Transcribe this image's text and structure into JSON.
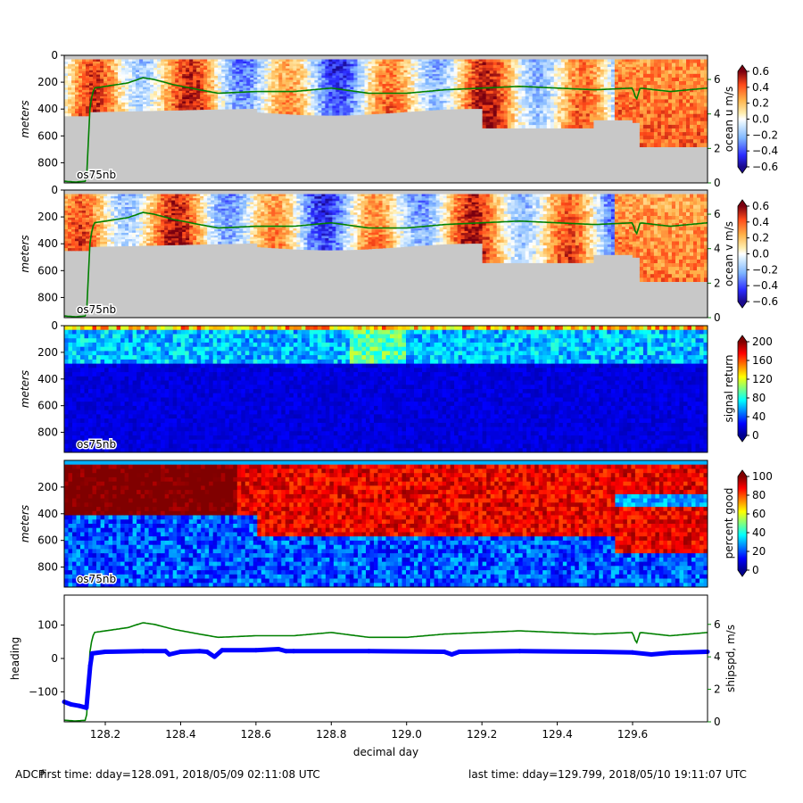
{
  "footer": {
    "label": "ADCP",
    "first_time": "first time: dday=128.091,  2018/05/09 02:11:08 UTC",
    "last_time": "last time: dday=129.799,  2018/05/10 19:11:07 UTC"
  },
  "colors": {
    "background": "#c8c8c8",
    "ship_speed": "#008000",
    "heading": "#0000ff"
  },
  "chart_data": [
    {
      "type": "heatmap",
      "name": "ocean u",
      "tag": "os75nb",
      "ylabel": "meters",
      "colorbar_label": "ocean u m/s",
      "colormap": "diverging",
      "clim": [
        -0.6,
        0.6
      ],
      "colorbar_ticks": [
        "0.6",
        "0.4",
        "0.2",
        "0.0",
        "−0.2",
        "−0.4",
        "−0.6"
      ],
      "ylim": [
        950,
        0
      ],
      "yticks": [
        0,
        200,
        400,
        600,
        800
      ],
      "xlim": [
        128.091,
        129.799
      ],
      "right_axis": {
        "label": "",
        "ylim": [
          0,
          7.4
        ],
        "ticks": [
          0,
          2,
          4,
          6
        ]
      }
    },
    {
      "type": "heatmap",
      "name": "ocean v",
      "tag": "os75nb",
      "ylabel": "meters",
      "colorbar_label": "ocean v m/s",
      "colormap": "diverging",
      "clim": [
        -0.6,
        0.6
      ],
      "colorbar_ticks": [
        "0.6",
        "0.4",
        "0.2",
        "0.0",
        "−0.2",
        "−0.4",
        "−0.6"
      ],
      "ylim": [
        950,
        0
      ],
      "yticks": [
        0,
        200,
        400,
        600,
        800
      ],
      "xlim": [
        128.091,
        129.799
      ],
      "right_axis": {
        "label": "",
        "ylim": [
          0,
          7.4
        ],
        "ticks": [
          0,
          2,
          4,
          6
        ]
      }
    },
    {
      "type": "heatmap",
      "name": "signal return",
      "tag": "os75nb",
      "ylabel": "meters",
      "colorbar_label": "signal return",
      "colormap": "jet",
      "clim": [
        0,
        200
      ],
      "colorbar_ticks": [
        "200",
        "160",
        "120",
        "80",
        "40",
        "0"
      ],
      "ylim": [
        950,
        0
      ],
      "yticks": [
        0,
        200,
        400,
        600,
        800
      ],
      "xlim": [
        128.091,
        129.799
      ]
    },
    {
      "type": "heatmap",
      "name": "percent good",
      "tag": "os75nb",
      "ylabel": "meters",
      "colorbar_label": "percent good",
      "colormap": "jet",
      "clim": [
        0,
        100
      ],
      "colorbar_ticks": [
        "100",
        "80",
        "60",
        "40",
        "20",
        "0"
      ],
      "ylim": [
        950,
        0
      ],
      "yticks": [
        200,
        400,
        600,
        800
      ],
      "xlim": [
        128.091,
        129.799
      ]
    },
    {
      "type": "line",
      "name": "heading and ship speed",
      "xlabel": "decimal day",
      "ylabel": "heading",
      "y2label": "shipspd, m/s",
      "xlim": [
        128.091,
        129.799
      ],
      "xticks": [
        "128.2",
        "128.4",
        "128.6",
        "128.8",
        "129.0",
        "129.2",
        "129.4",
        "129.6"
      ],
      "ylim": [
        -190,
        190
      ],
      "yticks": [
        "100",
        "0",
        "−100"
      ],
      "y2lim": [
        0,
        7.8
      ],
      "y2ticks": [
        "0",
        "2",
        "4",
        "6"
      ],
      "series": [
        {
          "axis": "left",
          "x": [
            128.091,
            128.11,
            128.13,
            128.15,
            128.16,
            128.165,
            128.2,
            128.3,
            128.36,
            128.37,
            128.4,
            128.45,
            128.47,
            128.49,
            128.51,
            128.6,
            128.66,
            128.68,
            128.7,
            128.9,
            129.1,
            129.12,
            129.14,
            129.3,
            129.5,
            129.6,
            129.65,
            129.7,
            129.799
          ],
          "y": [
            -130,
            -138,
            -142,
            -148,
            -22,
            15,
            20,
            22,
            22,
            12,
            20,
            22,
            20,
            5,
            25,
            25,
            28,
            22,
            22,
            22,
            20,
            12,
            20,
            22,
            20,
            18,
            12,
            17,
            20
          ]
        },
        {
          "axis": "right",
          "x": [
            128.091,
            128.12,
            128.15,
            128.16,
            128.17,
            128.2,
            128.26,
            128.3,
            128.33,
            128.38,
            128.45,
            128.5,
            128.6,
            128.7,
            128.8,
            128.9,
            129.0,
            129.1,
            129.2,
            129.3,
            129.4,
            129.5,
            129.6,
            129.61,
            129.62,
            129.7,
            129.799
          ],
          "y": [
            0.1,
            0.05,
            0.1,
            4.6,
            5.5,
            5.6,
            5.8,
            6.1,
            6.0,
            5.7,
            5.4,
            5.2,
            5.3,
            5.3,
            5.5,
            5.2,
            5.2,
            5.4,
            5.5,
            5.6,
            5.5,
            5.4,
            5.5,
            4.8,
            5.5,
            5.3,
            5.5
          ]
        }
      ]
    }
  ]
}
